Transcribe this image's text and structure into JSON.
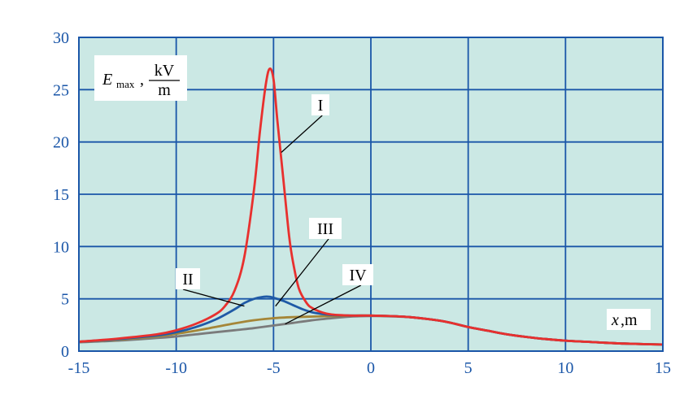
{
  "chart_data": {
    "type": "line",
    "xlim": [
      -15,
      15
    ],
    "ylim": [
      0,
      30
    ],
    "x_ticks": [
      -15,
      -10,
      -5,
      0,
      5,
      10,
      15
    ],
    "y_ticks": [
      0,
      5,
      10,
      15,
      20,
      25,
      30
    ],
    "grid": true,
    "background_color": "#cbe8e4",
    "grid_color": "#1a56a8",
    "ylabel": {
      "var": "E",
      "sub": "max",
      "num": "kV",
      "den": "m"
    },
    "xlabel": {
      "var": "x",
      "unit": ",m"
    },
    "series": [
      {
        "name": "I",
        "color": "#e8302e",
        "x": [
          -15,
          -13,
          -11,
          -10,
          -9,
          -8,
          -7.5,
          -7,
          -6.5,
          -6,
          -5.7,
          -5.4,
          -5.2,
          -5.0,
          -4.8,
          -4.5,
          -4.2,
          -4.0,
          -3.7,
          -3.3,
          -3,
          -2.5,
          -2,
          -1,
          0,
          1,
          2,
          3,
          4,
          5,
          6,
          7,
          8,
          9,
          10,
          11,
          12,
          13,
          14,
          15
        ],
        "y": [
          0.9,
          1.2,
          1.6,
          2.0,
          2.6,
          3.5,
          4.3,
          5.8,
          9.0,
          15.5,
          21.0,
          25.5,
          27.0,
          26.0,
          22.0,
          16.5,
          11.0,
          8.5,
          6.0,
          4.6,
          4.1,
          3.7,
          3.5,
          3.4,
          3.4,
          3.35,
          3.25,
          3.05,
          2.75,
          2.3,
          1.95,
          1.6,
          1.35,
          1.15,
          1.0,
          0.9,
          0.8,
          0.72,
          0.67,
          0.63
        ]
      },
      {
        "name": "II",
        "color": "#1f5aa6",
        "x": [
          -15,
          -13,
          -11,
          -10,
          -9,
          -8,
          -7,
          -6.5,
          -6,
          -5.5,
          -5.2,
          -5,
          -4.5,
          -4,
          -3.5,
          -3,
          -2.5,
          -2,
          -1,
          0,
          1,
          2,
          3,
          4,
          5,
          6,
          7,
          8,
          9,
          10,
          11,
          12,
          13,
          14,
          15
        ],
        "y": [
          0.9,
          1.15,
          1.5,
          1.8,
          2.3,
          3.0,
          4.0,
          4.6,
          5.0,
          5.2,
          5.2,
          5.1,
          4.8,
          4.4,
          4.0,
          3.7,
          3.55,
          3.45,
          3.4,
          3.4,
          3.35,
          3.25,
          3.05,
          2.75,
          2.3,
          1.95,
          1.6,
          1.35,
          1.15,
          1.0,
          0.9,
          0.8,
          0.72,
          0.67,
          0.63
        ]
      },
      {
        "name": "III",
        "color": "#a58638",
        "x": [
          -15,
          -13,
          -11,
          -10,
          -9,
          -8,
          -7,
          -6,
          -5,
          -4,
          -3,
          -2,
          -1,
          0,
          1,
          2,
          3,
          4,
          5,
          6,
          7,
          8,
          9,
          10,
          11,
          12,
          13,
          14,
          15
        ],
        "y": [
          0.9,
          1.1,
          1.4,
          1.65,
          1.95,
          2.3,
          2.65,
          2.95,
          3.15,
          3.25,
          3.3,
          3.35,
          3.4,
          3.4,
          3.35,
          3.25,
          3.05,
          2.75,
          2.3,
          1.95,
          1.6,
          1.35,
          1.15,
          1.0,
          0.9,
          0.8,
          0.72,
          0.67,
          0.63
        ]
      },
      {
        "name": "IV",
        "color": "#7b7b7b",
        "x": [
          -15,
          -13,
          -11,
          -10,
          -9,
          -8,
          -7,
          -6,
          -5,
          -4,
          -3,
          -2,
          -1,
          0,
          1,
          2,
          3,
          4,
          5,
          6,
          7,
          8,
          9,
          10,
          11,
          12,
          13,
          14,
          15
        ],
        "y": [
          0.85,
          1.0,
          1.25,
          1.4,
          1.6,
          1.8,
          2.0,
          2.2,
          2.45,
          2.7,
          2.95,
          3.15,
          3.3,
          3.35,
          3.33,
          3.25,
          3.05,
          2.75,
          2.3,
          1.95,
          1.6,
          1.35,
          1.15,
          1.0,
          0.9,
          0.8,
          0.72,
          0.67,
          0.63
        ]
      }
    ],
    "annotations": [
      {
        "text": "I",
        "point": [
          -4.6,
          19.0
        ],
        "series": 0
      },
      {
        "text": "II",
        "point": [
          -6.5,
          4.3
        ],
        "series": 1
      },
      {
        "text": "III",
        "point": [
          -4.9,
          4.3
        ],
        "series": 2
      },
      {
        "text": "IV",
        "point": [
          -4.4,
          2.6
        ],
        "series": 3
      }
    ]
  }
}
